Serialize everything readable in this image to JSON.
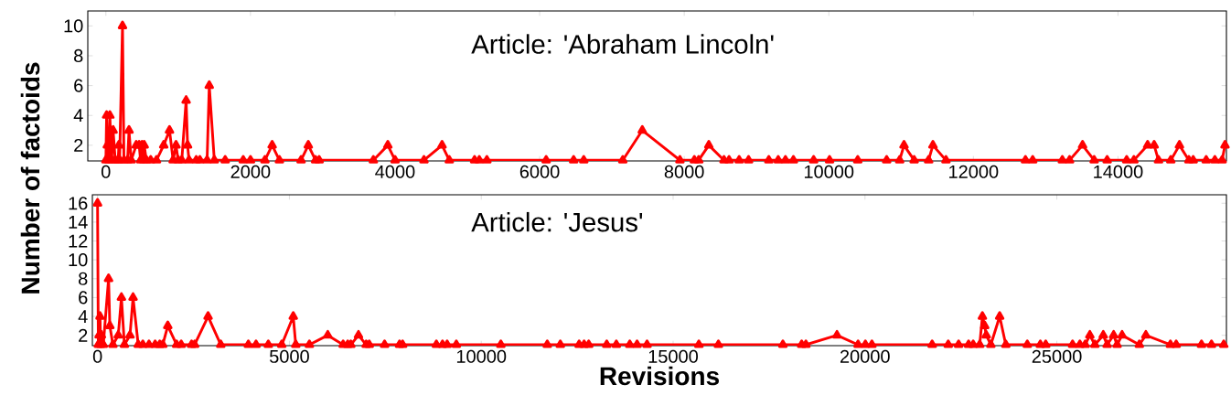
{
  "chart_data": [
    {
      "type": "line",
      "title": "Article: 'Abraham Lincoln'",
      "ylabel": "Number of factoids",
      "marker": "triangle",
      "xlim": [
        -250,
        15500
      ],
      "ylim": [
        0.95,
        11
      ],
      "xticks": [
        0,
        2000,
        4000,
        6000,
        8000,
        10000,
        12000,
        14000
      ],
      "yticks": [
        2,
        4,
        6,
        8,
        10
      ],
      "series": [
        {
          "color": "#ff0000",
          "x": [
            0,
            10,
            20,
            40,
            55,
            70,
            80,
            100,
            130,
            170,
            180,
            190,
            230,
            250,
            300,
            320,
            350,
            420,
            460,
            480,
            500,
            520,
            530,
            560,
            620,
            700,
            800,
            880,
            930,
            970,
            1000,
            1050,
            1110,
            1130,
            1150,
            1250,
            1300,
            1400,
            1430,
            1500,
            1650,
            1900,
            2000,
            2200,
            2300,
            2400,
            2700,
            2800,
            2900,
            2950,
            3700,
            3900,
            4000,
            4400,
            4650,
            4750,
            5100,
            5165,
            5270,
            6090,
            6470,
            6610,
            7150,
            7420,
            7940,
            8140,
            8200,
            8340,
            8550,
            8620,
            8760,
            8890,
            9170,
            9300,
            9400,
            9510,
            9790,
            10010,
            10400,
            10800,
            10980,
            11040,
            11180,
            11380,
            11440,
            11620,
            12720,
            12820,
            13230,
            13330,
            13510,
            13670,
            13850,
            14120,
            14220,
            14410,
            14500,
            14560,
            14730,
            14850,
            14980,
            15040,
            15220,
            15340,
            15440,
            15480
          ],
          "values": [
            1,
            4,
            2,
            1,
            4,
            2,
            1,
            3,
            1,
            1,
            2,
            1,
            10,
            1,
            1,
            3,
            1,
            2,
            2,
            1,
            2,
            1,
            2,
            1,
            1,
            1,
            2,
            3,
            1,
            2,
            1,
            1,
            5,
            2,
            1,
            1,
            1,
            1,
            6,
            1,
            1,
            1,
            1,
            1,
            2,
            1,
            1,
            2,
            1,
            1,
            1,
            2,
            1,
            1,
            2,
            1,
            1,
            1,
            1,
            1,
            1,
            1,
            1,
            3,
            1,
            1,
            1,
            2,
            1,
            1,
            1,
            1,
            1,
            1,
            1,
            1,
            1,
            1,
            1,
            1,
            1,
            2,
            1,
            1,
            2,
            1,
            1,
            1,
            1,
            1,
            2,
            1,
            1,
            1,
            1,
            2,
            2,
            1,
            1,
            2,
            1,
            1,
            1,
            1,
            1,
            2
          ]
        }
      ]
    },
    {
      "type": "line",
      "title": "Article: 'Jesus'",
      "xlabel": "Revisions",
      "marker": "triangle",
      "xlim": [
        -135,
        29420
      ],
      "ylim": [
        0.9,
        16.9
      ],
      "xticks": [
        0,
        5000,
        10000,
        15000,
        20000,
        25000
      ],
      "yticks": [
        2,
        4,
        6,
        8,
        10,
        12,
        14,
        16
      ],
      "series": [
        {
          "color": "#ff0000",
          "x": [
            0,
            20,
            40,
            64,
            80,
            100,
            150,
            287,
            320,
            400,
            540,
            622,
            700,
            845,
            925,
            1060,
            1180,
            1340,
            1500,
            1620,
            1700,
            1830,
            2060,
            2180,
            2450,
            2530,
            2880,
            3210,
            3930,
            4130,
            4450,
            4800,
            5100,
            5165,
            5520,
            6000,
            6400,
            6520,
            6600,
            6800,
            7000,
            7080,
            7480,
            7870,
            7950,
            8830,
            8990,
            9110,
            9350,
            10510,
            11720,
            12060,
            12550,
            12680,
            12800,
            13270,
            13520,
            13870,
            14060,
            14320,
            15670,
            16180,
            17860,
            18350,
            18460,
            19270,
            19820,
            20010,
            20180,
            21750,
            22170,
            22440,
            22700,
            22820,
            22990,
            23060,
            23120,
            23160,
            23280,
            23510,
            23670,
            24230,
            24570,
            24710,
            25410,
            25600,
            25740,
            25860,
            25990,
            26210,
            26310,
            26480,
            26570,
            26700,
            27150,
            27320,
            27960,
            28110,
            28770,
            29030,
            29350
          ],
          "values": [
            16,
            1,
            2,
            4,
            1,
            2,
            1,
            8,
            3,
            1,
            2,
            6,
            1,
            2,
            6,
            1,
            1,
            1,
            1,
            1,
            1,
            3,
            1,
            1,
            1,
            1,
            4,
            1,
            1,
            1,
            1,
            1,
            4,
            1,
            1,
            2,
            1,
            1,
            1,
            2,
            1,
            1,
            1,
            1,
            1,
            1,
            1,
            1,
            1,
            1,
            1,
            1,
            1,
            1,
            1,
            1,
            1,
            1,
            1,
            1,
            1,
            1,
            1,
            1,
            1,
            2,
            1,
            1,
            1,
            1,
            1,
            1,
            1,
            1,
            1,
            4,
            3,
            2,
            1,
            4,
            1,
            1,
            1,
            1,
            1,
            1,
            1,
            2,
            1,
            2,
            1,
            2,
            1,
            2,
            1,
            2,
            1,
            1,
            1,
            1,
            1
          ]
        }
      ]
    }
  ]
}
